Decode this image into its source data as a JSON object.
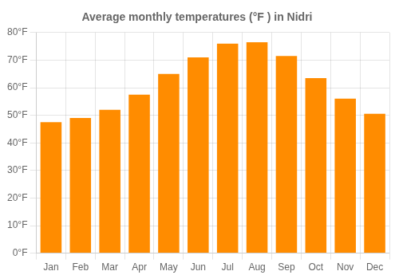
{
  "chart_data": {
    "type": "bar",
    "title": "Average monthly temperatures (°F ) in Nidri",
    "categories": [
      "Jan",
      "Feb",
      "Mar",
      "Apr",
      "May",
      "Jun",
      "Jul",
      "Aug",
      "Sep",
      "Oct",
      "Nov",
      "Dec"
    ],
    "values": [
      47.5,
      49.0,
      52.0,
      57.5,
      65.0,
      71.0,
      76.0,
      76.5,
      71.5,
      63.5,
      56.0,
      50.5
    ],
    "color": "#FF8C00",
    "ylim": [
      0,
      80
    ],
    "yticks": [
      {
        "value": 0,
        "label": "0°F"
      },
      {
        "value": 10,
        "label": "10°F"
      },
      {
        "value": 20,
        "label": "20°F"
      },
      {
        "value": 30,
        "label": "30°F"
      },
      {
        "value": 40,
        "label": "40°F"
      },
      {
        "value": 50,
        "label": "50°F"
      },
      {
        "value": 60,
        "label": "60°F"
      },
      {
        "value": 70,
        "label": "70°F"
      },
      {
        "value": 80,
        "label": "80°F"
      }
    ],
    "grid": true
  }
}
